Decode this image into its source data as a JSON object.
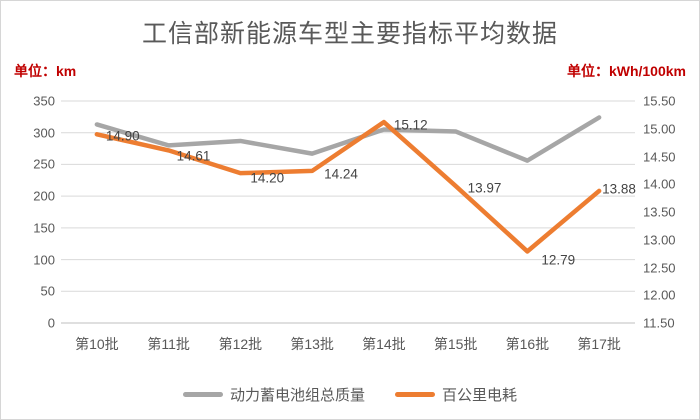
{
  "title": "工信部新能源车型主要指标平均数据",
  "left_axis_unit": "单位：km",
  "right_axis_unit": "单位：kWh/100km",
  "colors": {
    "title_text": "#595959",
    "unit_text": "#c00000",
    "axis_text": "#595959",
    "data_label_text": "#444444",
    "gridline": "#d9d9d9",
    "x_axis_line": "#bfbfbf",
    "series_battery_mass": "#a6a6a6",
    "series_consumption": "#ed7d31"
  },
  "chart_data": {
    "type": "line",
    "title": "工信部新能源车型主要指标平均数据",
    "categories": [
      "第10批",
      "第11批",
      "第12批",
      "第13批",
      "第14批",
      "第15批",
      "第16批",
      "第17批"
    ],
    "series": [
      {
        "name": "动力蓄电池组总质量",
        "color": "#a6a6a6",
        "axis": "left",
        "values": [
          313,
          280,
          287,
          267,
          305,
          302,
          256,
          324
        ],
        "values_are_estimates_from_pixels": true,
        "show_labels": false
      },
      {
        "name": "百公里电耗",
        "color": "#ed7d31",
        "axis": "right",
        "values": [
          14.9,
          14.61,
          14.2,
          14.24,
          15.12,
          13.97,
          12.79,
          13.88
        ],
        "labels": [
          "14.90",
          "14.61",
          "14.20",
          "14.24",
          "15.12",
          "13.97",
          "12.79",
          "13.88"
        ],
        "show_labels": true
      }
    ],
    "left_axis": {
      "unit": "单位：km",
      "min": 0,
      "max": 350,
      "ticks": [
        "350",
        "300",
        "250",
        "200",
        "150",
        "100",
        "50",
        "0"
      ]
    },
    "right_axis": {
      "unit": "单位：kWh/100km",
      "min": 11.5,
      "max": 15.5,
      "ticks": [
        "15.50",
        "15.00",
        "14.50",
        "14.00",
        "13.50",
        "13.00",
        "12.50",
        "12.00",
        "11.50"
      ]
    },
    "grid": true,
    "legend_position": "bottom"
  },
  "legend": {
    "items": [
      {
        "label": "动力蓄电池组总质量",
        "color": "#a6a6a6"
      },
      {
        "label": "百公里电耗",
        "color": "#ed7d31"
      }
    ]
  }
}
